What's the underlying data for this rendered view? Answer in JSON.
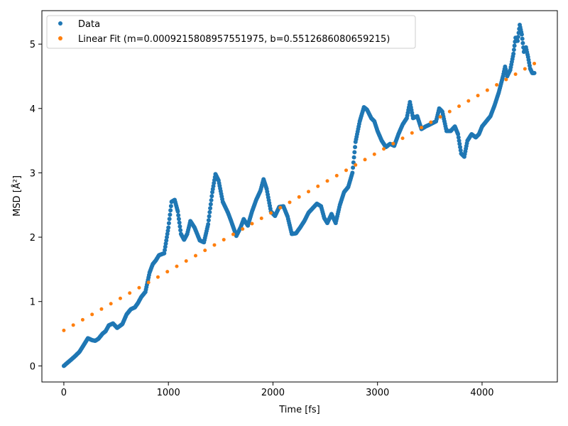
{
  "chart_data": {
    "type": "scatter",
    "title": "",
    "xlabel": "Time [fs]",
    "ylabel": "MSD [Å²]",
    "xlim": [
      -210,
      4720
    ],
    "ylim": [
      -0.25,
      5.52
    ],
    "xticks": [
      0,
      1000,
      2000,
      3000,
      4000
    ],
    "yticks": [
      0,
      1,
      2,
      3,
      4,
      5
    ],
    "grid": false,
    "legend_position": "top-left",
    "series": [
      {
        "name": "Data",
        "color": "#1f77b4",
        "marker": "dot",
        "keypoints": [
          [
            0,
            0.0
          ],
          [
            50,
            0.07
          ],
          [
            100,
            0.14
          ],
          [
            150,
            0.22
          ],
          [
            200,
            0.35
          ],
          [
            230,
            0.43
          ],
          [
            270,
            0.4
          ],
          [
            300,
            0.39
          ],
          [
            330,
            0.42
          ],
          [
            370,
            0.5
          ],
          [
            400,
            0.54
          ],
          [
            430,
            0.63
          ],
          [
            470,
            0.66
          ],
          [
            510,
            0.59
          ],
          [
            560,
            0.65
          ],
          [
            600,
            0.8
          ],
          [
            640,
            0.88
          ],
          [
            680,
            0.91
          ],
          [
            710,
            0.98
          ],
          [
            740,
            1.07
          ],
          [
            780,
            1.15
          ],
          [
            820,
            1.45
          ],
          [
            850,
            1.58
          ],
          [
            880,
            1.64
          ],
          [
            910,
            1.72
          ],
          [
            960,
            1.75
          ],
          [
            1000,
            2.15
          ],
          [
            1030,
            2.55
          ],
          [
            1060,
            2.58
          ],
          [
            1090,
            2.4
          ],
          [
            1120,
            2.05
          ],
          [
            1150,
            1.96
          ],
          [
            1180,
            2.05
          ],
          [
            1210,
            2.25
          ],
          [
            1250,
            2.15
          ],
          [
            1300,
            1.95
          ],
          [
            1340,
            1.92
          ],
          [
            1380,
            2.2
          ],
          [
            1420,
            2.7
          ],
          [
            1450,
            2.98
          ],
          [
            1480,
            2.88
          ],
          [
            1520,
            2.55
          ],
          [
            1570,
            2.38
          ],
          [
            1600,
            2.25
          ],
          [
            1650,
            2.02
          ],
          [
            1690,
            2.15
          ],
          [
            1720,
            2.28
          ],
          [
            1760,
            2.18
          ],
          [
            1800,
            2.4
          ],
          [
            1840,
            2.58
          ],
          [
            1880,
            2.72
          ],
          [
            1910,
            2.9
          ],
          [
            1940,
            2.75
          ],
          [
            1980,
            2.4
          ],
          [
            2020,
            2.33
          ],
          [
            2060,
            2.47
          ],
          [
            2100,
            2.48
          ],
          [
            2140,
            2.32
          ],
          [
            2180,
            2.05
          ],
          [
            2220,
            2.06
          ],
          [
            2260,
            2.15
          ],
          [
            2300,
            2.25
          ],
          [
            2340,
            2.38
          ],
          [
            2380,
            2.45
          ],
          [
            2420,
            2.52
          ],
          [
            2460,
            2.48
          ],
          [
            2490,
            2.3
          ],
          [
            2520,
            2.22
          ],
          [
            2560,
            2.36
          ],
          [
            2600,
            2.22
          ],
          [
            2640,
            2.5
          ],
          [
            2680,
            2.7
          ],
          [
            2720,
            2.78
          ],
          [
            2760,
            3.0
          ],
          [
            2790,
            3.48
          ],
          [
            2830,
            3.8
          ],
          [
            2870,
            4.02
          ],
          [
            2900,
            3.98
          ],
          [
            2940,
            3.85
          ],
          [
            2970,
            3.8
          ],
          [
            3000,
            3.65
          ],
          [
            3040,
            3.5
          ],
          [
            3080,
            3.4
          ],
          [
            3120,
            3.45
          ],
          [
            3160,
            3.42
          ],
          [
            3200,
            3.6
          ],
          [
            3240,
            3.75
          ],
          [
            3280,
            3.85
          ],
          [
            3310,
            4.1
          ],
          [
            3340,
            3.85
          ],
          [
            3380,
            3.88
          ],
          [
            3420,
            3.68
          ],
          [
            3460,
            3.72
          ],
          [
            3500,
            3.75
          ],
          [
            3560,
            3.8
          ],
          [
            3590,
            4.0
          ],
          [
            3620,
            3.95
          ],
          [
            3660,
            3.65
          ],
          [
            3700,
            3.65
          ],
          [
            3740,
            3.72
          ],
          [
            3770,
            3.6
          ],
          [
            3800,
            3.3
          ],
          [
            3830,
            3.25
          ],
          [
            3860,
            3.5
          ],
          [
            3900,
            3.6
          ],
          [
            3940,
            3.55
          ],
          [
            3970,
            3.6
          ],
          [
            4000,
            3.72
          ],
          [
            4040,
            3.8
          ],
          [
            4080,
            3.88
          ],
          [
            4120,
            4.05
          ],
          [
            4160,
            4.25
          ],
          [
            4200,
            4.5
          ],
          [
            4220,
            4.65
          ],
          [
            4240,
            4.5
          ],
          [
            4270,
            4.6
          ],
          [
            4300,
            4.85
          ],
          [
            4320,
            5.1
          ],
          [
            4340,
            5.05
          ],
          [
            4360,
            5.3
          ],
          [
            4380,
            5.15
          ],
          [
            4400,
            4.88
          ],
          [
            4420,
            4.95
          ],
          [
            4440,
            4.8
          ],
          [
            4460,
            4.62
          ],
          [
            4480,
            4.55
          ],
          [
            4500,
            4.55
          ]
        ]
      },
      {
        "name": "Linear Fit (m=0.0009215808957551975, b=0.5512686080659215)",
        "color": "#ff7f0e",
        "marker": "dot",
        "m": 0.0009215808957551975,
        "b": 0.5512686080659215,
        "x": [
          0,
          90,
          180,
          270,
          360,
          450,
          540,
          630,
          720,
          810,
          900,
          990,
          1080,
          1170,
          1260,
          1350,
          1440,
          1530,
          1620,
          1710,
          1800,
          1890,
          1980,
          2070,
          2160,
          2250,
          2340,
          2430,
          2520,
          2610,
          2700,
          2790,
          2880,
          2970,
          3060,
          3150,
          3240,
          3330,
          3420,
          3510,
          3600,
          3690,
          3780,
          3870,
          3960,
          4050,
          4140,
          4230,
          4320,
          4410,
          4500
        ]
      }
    ]
  }
}
